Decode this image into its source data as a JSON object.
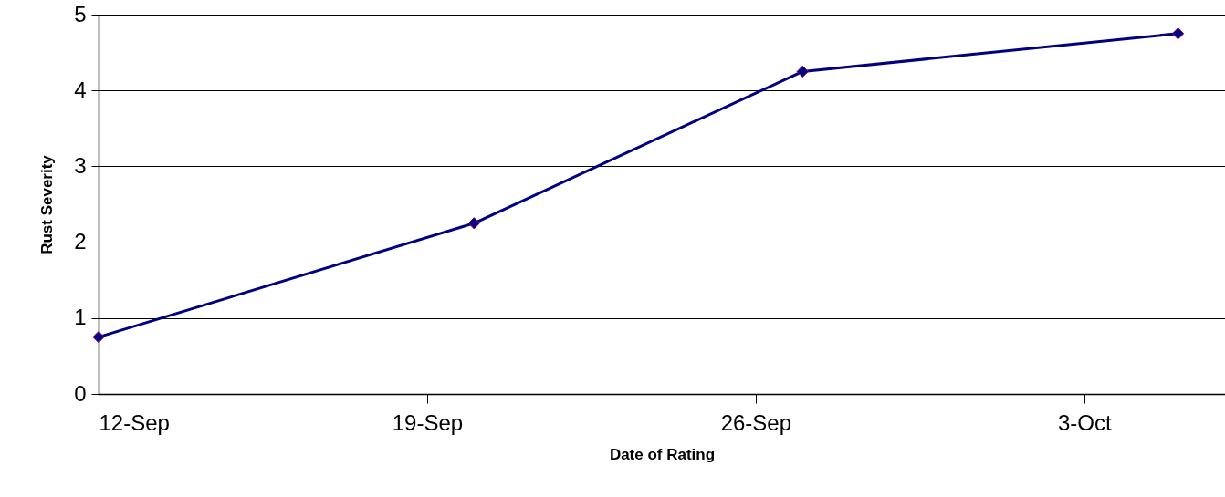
{
  "chart_data": {
    "type": "line",
    "xlabel": "Date of Rating",
    "ylabel": "Rust Severity",
    "x": [
      "--09-12",
      "--09-20",
      "--09-27",
      "--10-05"
    ],
    "series": [
      {
        "color": "#000080",
        "values": [
          0.75,
          2.25,
          4.25,
          4.75
        ]
      }
    ],
    "xlim": [
      "--09-12",
      "--10-06"
    ],
    "xticks": [
      {
        "value": "--09-12",
        "label": "12-Sep"
      },
      {
        "value": "--09-19",
        "label": "19-Sep"
      },
      {
        "value": "--09-26",
        "label": "26-Sep"
      },
      {
        "value": "--10-03",
        "label": "3-Oct"
      }
    ],
    "ylim": [
      0,
      5
    ],
    "yticks": [
      0,
      1,
      2,
      3,
      4,
      5
    ],
    "grid": "y",
    "marker": "diamond",
    "line_style": "solid"
  }
}
